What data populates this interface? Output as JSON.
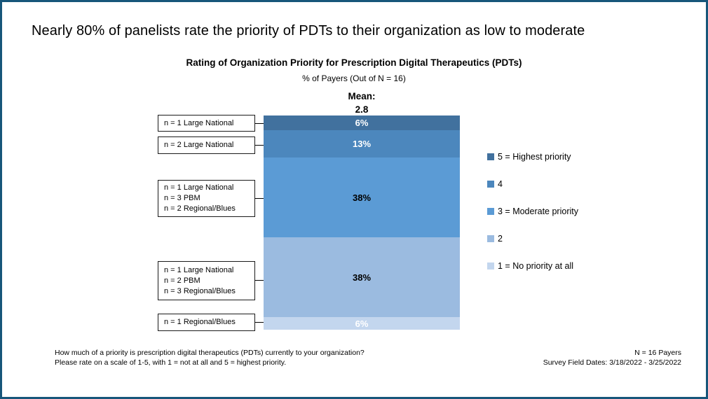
{
  "slide": {
    "border_color": "#17567A",
    "background": "#FFFFFF"
  },
  "headline": "Nearly 80% of panelists rate the priority of PDTs to their organization as low to moderate",
  "chart_header": {
    "title": "Rating of Organization Priority for Prescription Digital Therapeutics (PDTs)",
    "subtitle": "% of Payers (Out of N = 16)",
    "mean_label": "Mean:",
    "mean_value": "2.8"
  },
  "chart_data": {
    "type": "bar",
    "stacked": true,
    "orientation": "vertical-100pct-stack",
    "title": "Rating of Organization Priority for Prescription Digital Therapeutics (PDTs)",
    "subtitle": "% of Payers (Out of N = 16)",
    "n_total": 16,
    "mean": 2.8,
    "legend_position": "right",
    "segments": [
      {
        "rating": "5",
        "value": 6,
        "label": "6%",
        "color": "#41719E",
        "label_color": "#FFFFFF",
        "annotation_lines": [
          "n = 1 Large National"
        ]
      },
      {
        "rating": "4",
        "value": 13,
        "label": "13%",
        "color": "#4C87BD",
        "label_color": "#FFFFFF",
        "annotation_lines": [
          "n = 2 Large National"
        ]
      },
      {
        "rating": "3",
        "value": 38,
        "label": "38%",
        "color": "#5B9BD5",
        "label_color": "#000000",
        "annotation_lines": [
          "n = 1 Large National",
          "n = 3 PBM",
          "n = 2 Regional/Blues"
        ]
      },
      {
        "rating": "2",
        "value": 38,
        "label": "38%",
        "color": "#9BBBE0",
        "label_color": "#000000",
        "annotation_lines": [
          "n = 1 Large National",
          "n = 2 PBM",
          "n = 3 Regional/Blues"
        ]
      },
      {
        "rating": "1",
        "value": 6,
        "label": "6%",
        "color": "#C3D6EE",
        "label_color": "#FFFFFF",
        "annotation_lines": [
          "n = 1 Regional/Blues"
        ]
      }
    ],
    "legend": [
      {
        "label": "5 = Highest priority",
        "color": "#41719E"
      },
      {
        "label": "4",
        "color": "#4C87BD"
      },
      {
        "label": "3 = Moderate priority",
        "color": "#5B9BD5"
      },
      {
        "label": "2",
        "color": "#9BBBE0"
      },
      {
        "label": "1 = No priority at all",
        "color": "#C3D6EE"
      }
    ]
  },
  "footer": {
    "question_line1": "How much of a priority is prescription digital therapeutics (PDTs) currently to your organization?",
    "question_line2": "Please rate on a scale of 1-5, with 1 = not at all and 5 = highest priority.",
    "meta_line1": "N = 16 Payers",
    "meta_line2": "Survey Field Dates: 3/18/2022 - 3/25/2022"
  }
}
